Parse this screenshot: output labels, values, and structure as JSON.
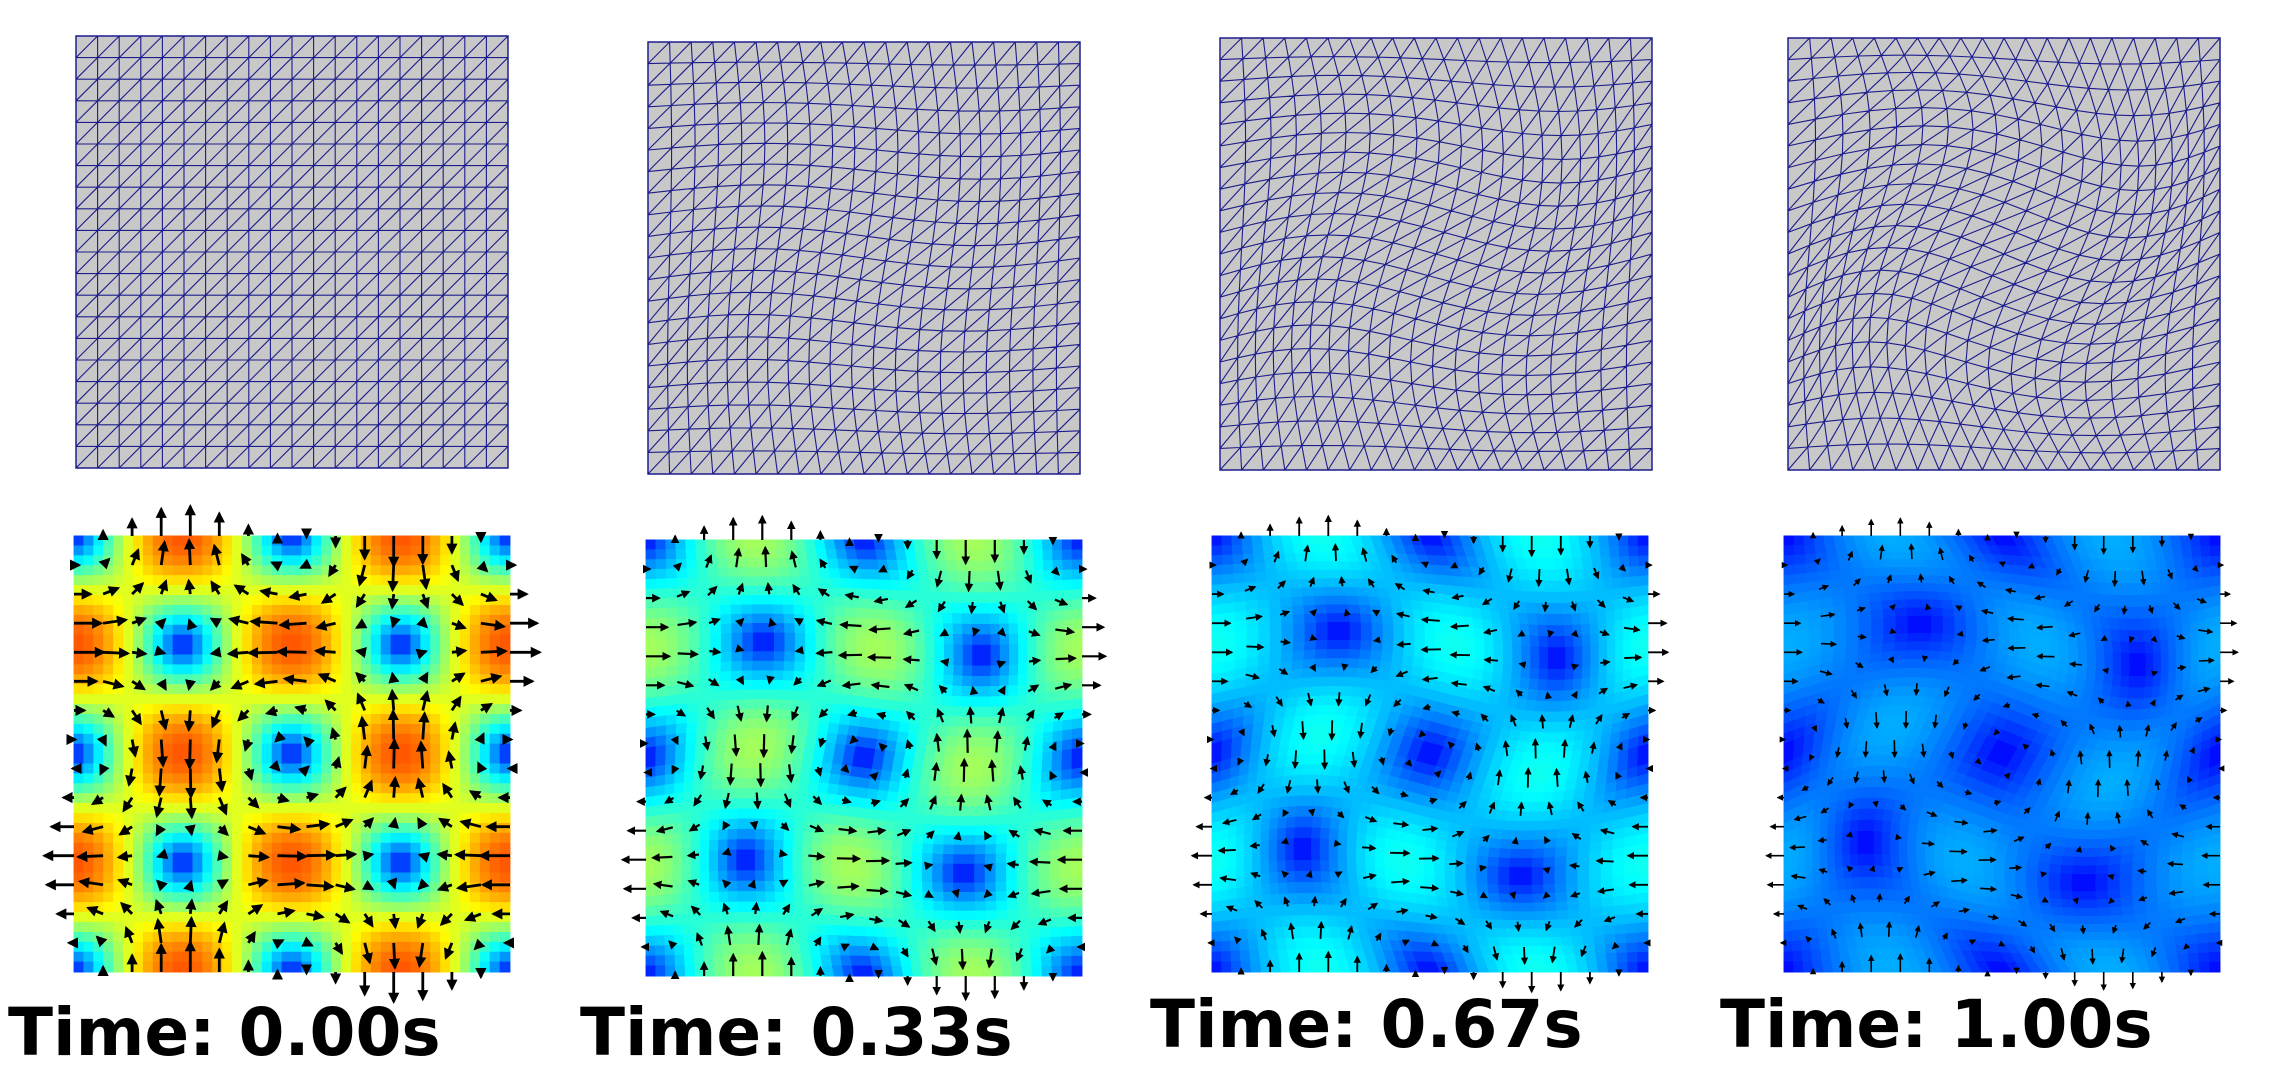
{
  "panels": [
    {
      "time_label": "Time: 0.00s",
      "deform": 0.0,
      "intensity": 1.0
    },
    {
      "time_label": "Time: 0.33s",
      "deform": 0.33,
      "intensity": 0.62
    },
    {
      "time_label": "Time: 0.67s",
      "deform": 0.67,
      "intensity": 0.4
    },
    {
      "time_label": "Time: 1.00s",
      "deform": 1.0,
      "intensity": 0.26
    }
  ],
  "mesh": {
    "divisions": 20,
    "fill_color": "#c8c8c8",
    "edge_color": "#1c1c8c"
  },
  "arrow_color": "#000000",
  "colormap": "jet"
}
